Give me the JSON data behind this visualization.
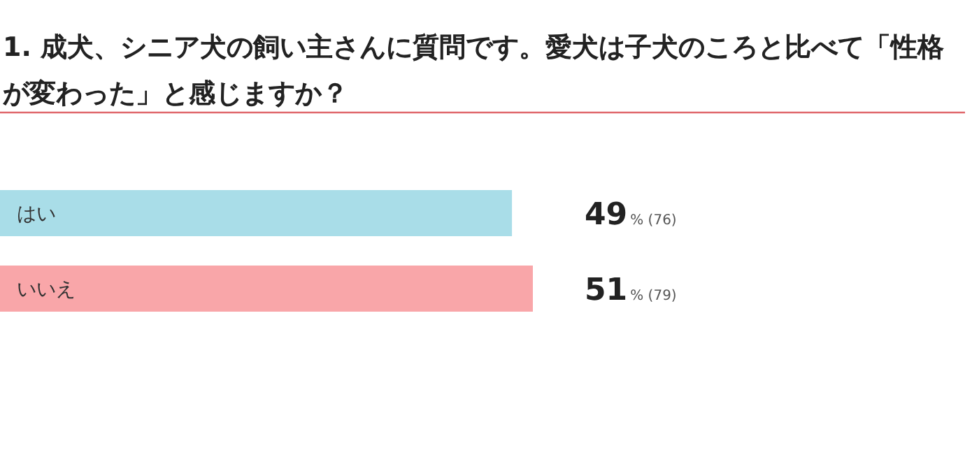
{
  "chart_data": {
    "type": "bar",
    "orientation": "horizontal",
    "title": "1. 成犬、シニア犬の飼い主さんに質問です。愛犬は子犬のころと比べて「性格が変わった」と感じますか？",
    "categories": [
      "はい",
      "いいえ"
    ],
    "values": [
      49,
      51
    ],
    "colors": [
      "#a9dde8",
      "#f9a6a9"
    ],
    "value_labels": [
      "49% (76)",
      "51% (79)"
    ]
  }
}
